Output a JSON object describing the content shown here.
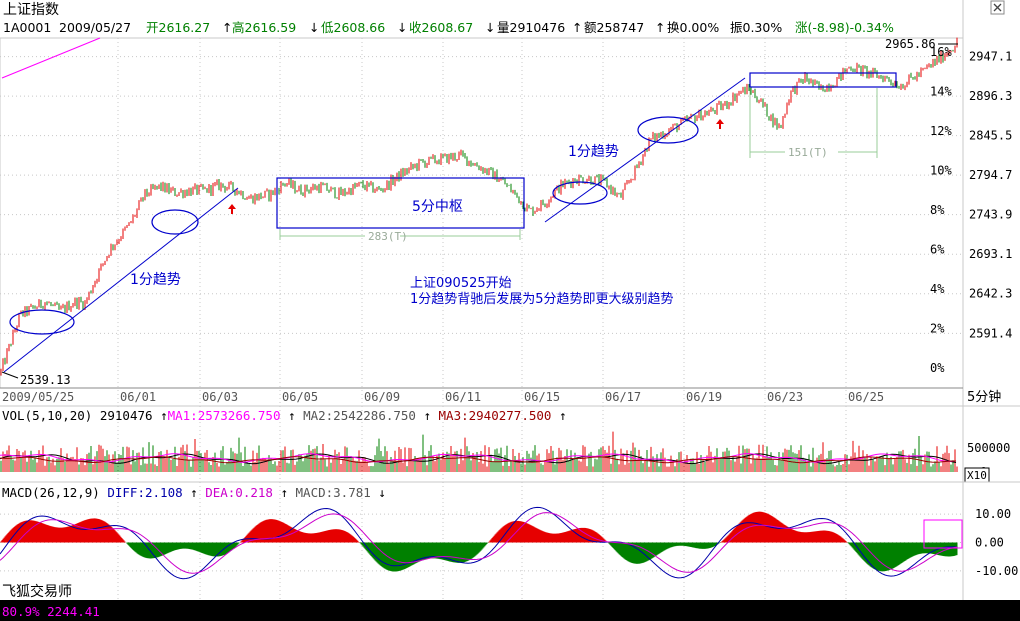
{
  "header": {
    "title": "上证指数",
    "code": "1A0001",
    "date": "2009/05/27",
    "open": "开2616.27",
    "high": "高2616.59",
    "low": "低2608.66",
    "close": "收2608.67",
    "volume": "量2910476",
    "amount": "额258747",
    "turnover": "换0.00%",
    "amplitude": "振0.30%",
    "change": "涨(-8.98)-0.34%"
  },
  "colors": {
    "up": "#e60000",
    "down": "#008000",
    "price": "#008000",
    "annotation": "#0000cc",
    "grid": "#c8c8c8",
    "ma1": "#ff00ff",
    "ma3": "#990000",
    "dea": "#cc00cc",
    "magenta": "#ff00ff"
  },
  "chart_data": [
    {
      "type": "line",
      "panel": "price",
      "y_ticks": [
        "2947.1",
        "2896.3",
        "2845.5",
        "2794.7",
        "2743.9",
        "2693.1",
        "2642.3",
        "2591.4"
      ],
      "pct_ticks": [
        "16%",
        "14%",
        "12%",
        "10%",
        "8%",
        "6%",
        "4%",
        "2%",
        "0%"
      ],
      "ylim": [
        2539.13,
        2965.86
      ],
      "max_label": "2965.86",
      "min_label": "2539.13",
      "x_ticks": [
        "2009/05/25",
        "06/01",
        "06/03",
        "06/05",
        "06/09",
        "06/11",
        "06/15",
        "06/17",
        "06/19",
        "06/23",
        "06/25"
      ],
      "period": "5分钟",
      "anchors": [
        [
          0,
          2539
        ],
        [
          20,
          2615
        ],
        [
          45,
          2632
        ],
        [
          60,
          2620
        ],
        [
          75,
          2632
        ],
        [
          85,
          2630
        ],
        [
          95,
          2660
        ],
        [
          110,
          2700
        ],
        [
          130,
          2732
        ],
        [
          145,
          2770
        ],
        [
          160,
          2780
        ],
        [
          175,
          2772
        ],
        [
          190,
          2775
        ],
        [
          205,
          2775
        ],
        [
          220,
          2782
        ],
        [
          235,
          2777
        ],
        [
          250,
          2765
        ],
        [
          270,
          2770
        ],
        [
          285,
          2785
        ],
        [
          300,
          2775
        ],
        [
          320,
          2780
        ],
        [
          340,
          2770
        ],
        [
          360,
          2782
        ],
        [
          380,
          2775
        ],
        [
          400,
          2795
        ],
        [
          420,
          2810
        ],
        [
          440,
          2815
        ],
        [
          460,
          2820
        ],
        [
          480,
          2805
        ],
        [
          500,
          2790
        ],
        [
          515,
          2770
        ],
        [
          530,
          2748
        ],
        [
          545,
          2760
        ],
        [
          560,
          2780
        ],
        [
          575,
          2790
        ],
        [
          590,
          2790
        ],
        [
          605,
          2785
        ],
        [
          620,
          2765
        ],
        [
          635,
          2800
        ],
        [
          650,
          2840
        ],
        [
          665,
          2850
        ],
        [
          680,
          2860
        ],
        [
          695,
          2870
        ],
        [
          710,
          2876
        ],
        [
          725,
          2885
        ],
        [
          740,
          2902
        ],
        [
          750,
          2905
        ],
        [
          760,
          2890
        ],
        [
          770,
          2870
        ],
        [
          780,
          2855
        ],
        [
          790,
          2900
        ],
        [
          805,
          2920
        ],
        [
          820,
          2905
        ],
        [
          835,
          2915
        ],
        [
          850,
          2935
        ],
        [
          870,
          2925
        ],
        [
          885,
          2920
        ],
        [
          900,
          2910
        ],
        [
          920,
          2925
        ],
        [
          940,
          2945
        ],
        [
          958,
          2966
        ]
      ],
      "annotations": {
        "trend_1min_a": "1分趋势",
        "trend_1min_b": "1分趋势",
        "pivot_5min": "5分中枢",
        "note_line1": "上证090525开始",
        "note_line2": "1分趋势背驰后发展为5分趋势即更大级别趋势",
        "count_283": "283(T)",
        "count_151": "151(T)"
      }
    },
    {
      "type": "bar",
      "panel": "volume",
      "title": "VOL(5,10,20)",
      "value": "2910476",
      "ma1": "MA1:2573266.750",
      "ma2": "MA2:2542286.750",
      "ma3": "MA3:2940277.500",
      "y_ticks": [
        "500000",
        "0"
      ],
      "scale_label": "X10"
    },
    {
      "type": "bar",
      "panel": "macd",
      "title": "MACD(26,12,9)",
      "diff": "DIFF:2.108",
      "dea": "DEA:0.218",
      "macd": "MACD:3.781",
      "y_ticks": [
        "10.00",
        "0.00",
        "-10.00"
      ],
      "ylim": [
        -15,
        15
      ]
    }
  ],
  "footer": {
    "brand": "飞狐交易师",
    "status": "80.9% 2244.41"
  }
}
